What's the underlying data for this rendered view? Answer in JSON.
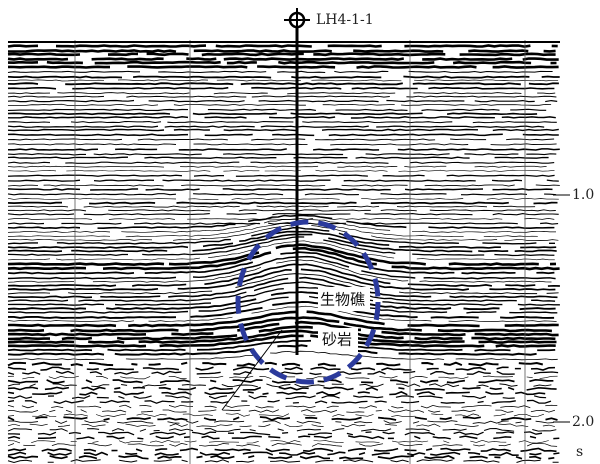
{
  "well": {
    "label": "LH4-1-1"
  },
  "time_axis": {
    "ticks": [
      "1.0",
      "2.0"
    ],
    "unit": "s"
  },
  "annotations": {
    "reef": "生物礁",
    "sandstone": "砂岩"
  }
}
